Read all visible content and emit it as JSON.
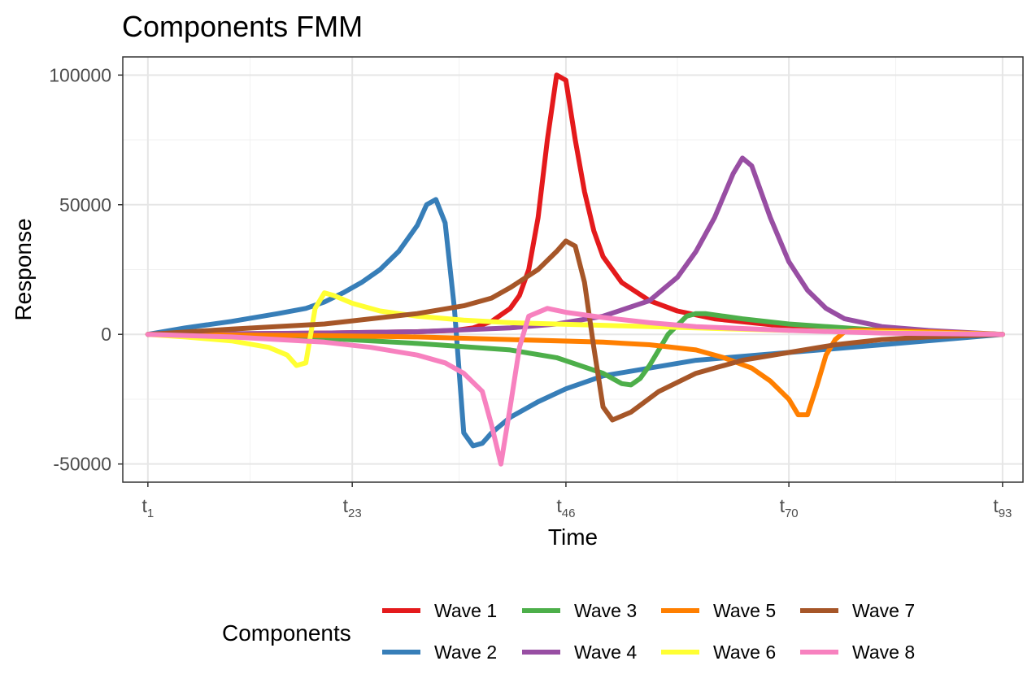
{
  "chart_data": {
    "type": "line",
    "title": "Components FMM",
    "xlabel": "Time",
    "ylabel": "Response",
    "xlim": [
      1,
      93
    ],
    "ylim": [
      -57000,
      107000
    ],
    "grid": true,
    "legend_position": "bottom",
    "legend_title": "Components",
    "x_ticks": [
      {
        "value": 1,
        "base": "t",
        "sub": "1"
      },
      {
        "value": 23,
        "base": "t",
        "sub": "23"
      },
      {
        "value": 46,
        "base": "t",
        "sub": "46"
      },
      {
        "value": 70,
        "base": "t",
        "sub": "70"
      },
      {
        "value": 93,
        "base": "t",
        "sub": "93"
      }
    ],
    "y_ticks": [
      {
        "value": 100000,
        "label": "100000"
      },
      {
        "value": 50000,
        "label": "50000"
      },
      {
        "value": 0,
        "label": "0"
      },
      {
        "value": -50000,
        "label": "-50000"
      }
    ],
    "series": [
      {
        "name": "Wave 1",
        "color": "#e41a1c",
        "x": [
          1,
          10,
          20,
          30,
          34,
          36,
          38,
          40,
          41,
          42,
          43,
          44,
          45,
          46,
          47,
          48,
          49,
          50,
          52,
          55,
          58,
          62,
          70,
          80,
          93
        ],
        "y": [
          0,
          200,
          500,
          1000,
          1500,
          2500,
          5000,
          10000,
          15000,
          25000,
          45000,
          75000,
          100000,
          98000,
          75000,
          55000,
          40000,
          30000,
          20000,
          13000,
          9000,
          6000,
          3000,
          1500,
          0
        ]
      },
      {
        "name": "Wave 2",
        "color": "#377eb8",
        "x": [
          1,
          5,
          10,
          15,
          18,
          20,
          22,
          24,
          26,
          28,
          30,
          31,
          32,
          33,
          34,
          35,
          36,
          37,
          38,
          40,
          43,
          46,
          50,
          55,
          60,
          70,
          80,
          93
        ],
        "y": [
          0,
          2500,
          5000,
          8000,
          10000,
          12500,
          16000,
          20000,
          25000,
          32000,
          42000,
          50000,
          52000,
          43000,
          10000,
          -38000,
          -43000,
          -42000,
          -38000,
          -32000,
          -26000,
          -21000,
          -16000,
          -13000,
          -10000,
          -7000,
          -4000,
          0
        ]
      },
      {
        "name": "Wave 3",
        "color": "#4daf4a",
        "x": [
          1,
          10,
          20,
          30,
          40,
          45,
          50,
          52,
          53,
          54,
          55,
          57,
          59,
          60,
          61,
          63,
          65,
          70,
          80,
          93
        ],
        "y": [
          0,
          -500,
          -1500,
          -3500,
          -6000,
          -9000,
          -15000,
          -19000,
          -19500,
          -17000,
          -12000,
          0,
          7000,
          8000,
          8000,
          7000,
          6000,
          4000,
          1500,
          0
        ]
      },
      {
        "name": "Wave 4",
        "color": "#984ea3",
        "x": [
          1,
          20,
          30,
          40,
          45,
          50,
          55,
          58,
          60,
          62,
          64,
          65,
          66,
          67,
          68,
          70,
          72,
          74,
          76,
          80,
          85,
          93
        ],
        "y": [
          0,
          500,
          1000,
          2500,
          4000,
          7000,
          13000,
          22000,
          32000,
          45000,
          62000,
          68000,
          65000,
          55000,
          45000,
          28000,
          17000,
          10000,
          6000,
          3000,
          1500,
          0
        ]
      },
      {
        "name": "Wave 5",
        "color": "#ff7f00",
        "x": [
          1,
          10,
          20,
          30,
          40,
          50,
          55,
          60,
          63,
          66,
          68,
          70,
          71,
          72,
          73,
          74,
          75,
          76,
          77,
          80,
          85,
          93
        ],
        "y": [
          0,
          -200,
          -500,
          -1000,
          -2000,
          -3000,
          -4000,
          -6000,
          -9000,
          -13000,
          -18000,
          -25000,
          -31000,
          -31000,
          -20000,
          -8000,
          -2000,
          1000,
          1500,
          1500,
          1000,
          0
        ]
      },
      {
        "name": "Wave 6",
        "color": "#ffff33",
        "x": [
          1,
          5,
          10,
          14,
          16,
          17,
          18,
          19,
          20,
          21,
          23,
          26,
          30,
          35,
          40,
          50,
          60,
          70,
          80,
          93
        ],
        "y": [
          0,
          -1000,
          -2500,
          -5000,
          -8000,
          -12000,
          -11000,
          10000,
          16000,
          15000,
          12000,
          9000,
          7000,
          5500,
          4500,
          3500,
          2500,
          1500,
          800,
          0
        ]
      },
      {
        "name": "Wave 7",
        "color": "#a65628",
        "x": [
          1,
          10,
          20,
          30,
          35,
          38,
          40,
          43,
          45,
          46,
          47,
          48,
          49,
          50,
          51,
          53,
          56,
          60,
          65,
          70,
          75,
          80,
          85,
          93
        ],
        "y": [
          0,
          2000,
          4000,
          8000,
          11000,
          14000,
          18000,
          25000,
          32000,
          36000,
          34000,
          20000,
          -5000,
          -28000,
          -33000,
          -30000,
          -22000,
          -15000,
          -10000,
          -7000,
          -4000,
          -2000,
          -1000,
          0
        ]
      },
      {
        "name": "Wave 8",
        "color": "#f781bf",
        "x": [
          1,
          10,
          20,
          25,
          30,
          33,
          35,
          37,
          38,
          39,
          40,
          41,
          42,
          44,
          46,
          50,
          55,
          60,
          70,
          80,
          93
        ],
        "y": [
          0,
          -1000,
          -3000,
          -5000,
          -8000,
          -11000,
          -15000,
          -22000,
          -35000,
          -50000,
          -28000,
          -5000,
          7000,
          10000,
          8500,
          6500,
          4500,
          3000,
          1500,
          500,
          0
        ]
      }
    ]
  }
}
